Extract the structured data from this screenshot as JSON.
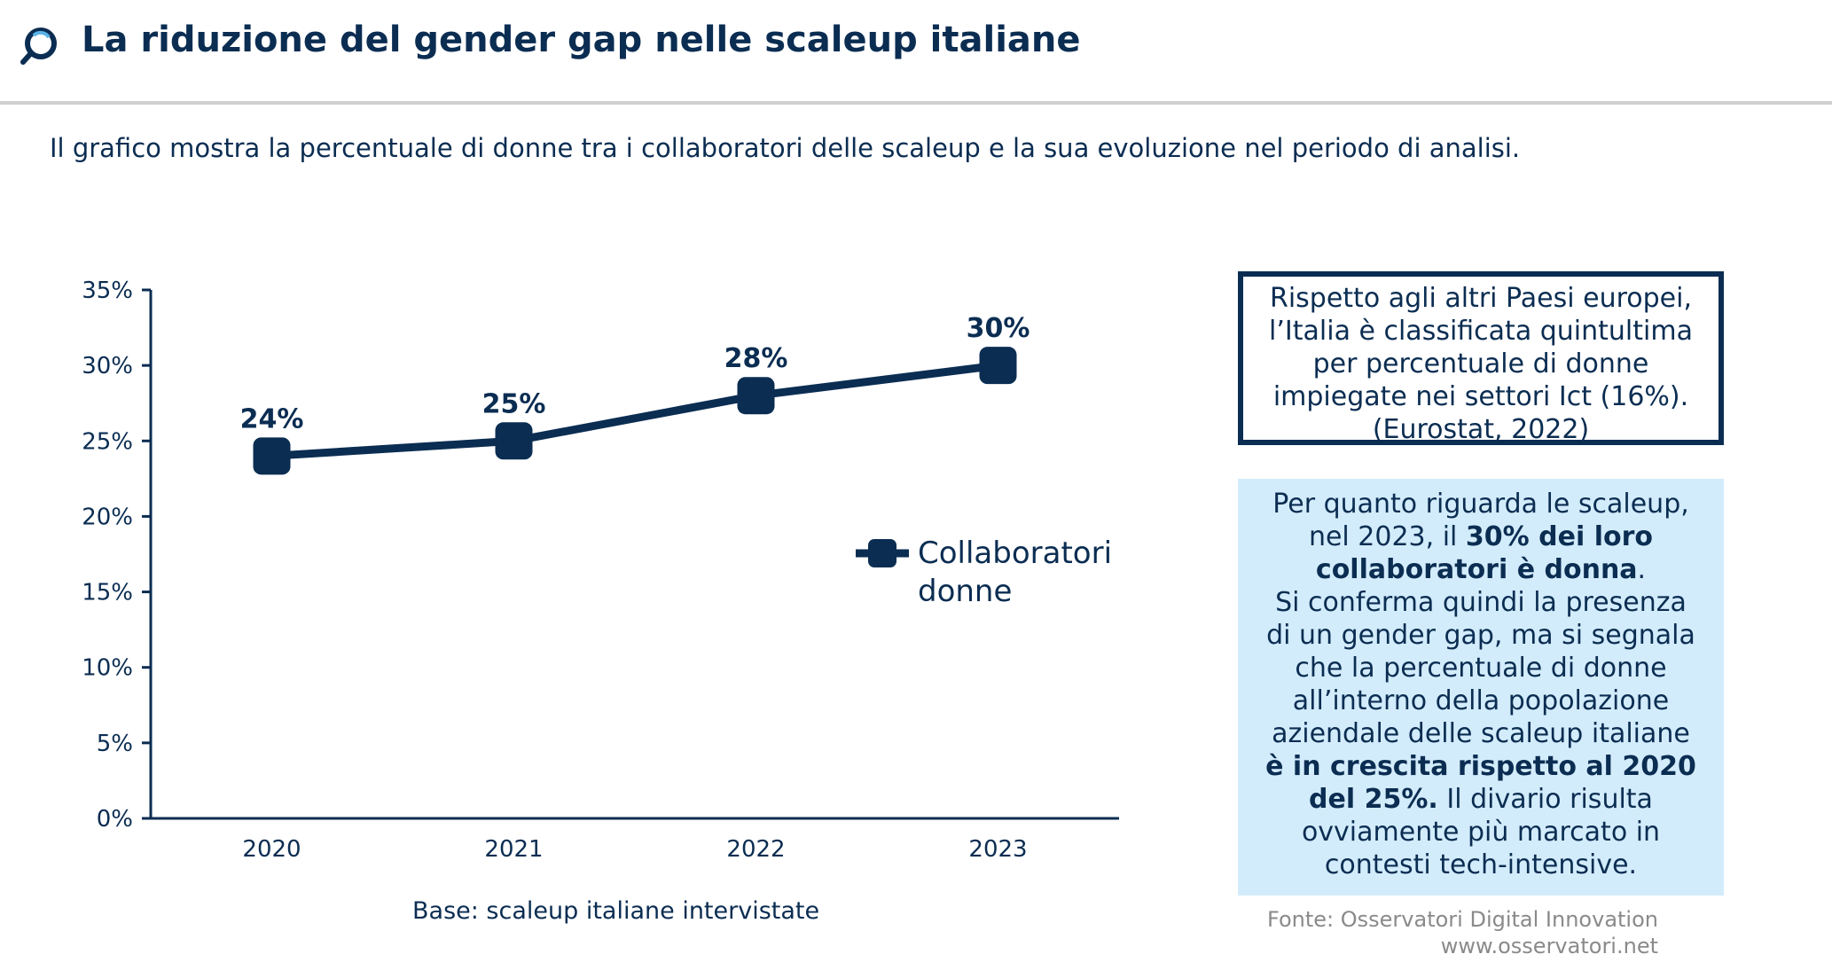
{
  "header": {
    "title": "La riduzione del gender gap nelle scaleup italiane",
    "logo_icon": "magnifier-logo-icon"
  },
  "subtitle": "Il grafico mostra la percentuale di donne tra i collaboratori delle scaleup e la sua evoluzione nel periodo di analisi.",
  "chart_data": {
    "type": "line",
    "categories": [
      "2020",
      "2021",
      "2022",
      "2023"
    ],
    "series": [
      {
        "name": "Collaboratori donne",
        "values": [
          24,
          25,
          28,
          30
        ],
        "labels": [
          "24%",
          "25%",
          "28%",
          "30%"
        ],
        "color": "#0b2d52"
      }
    ],
    "y_ticks": [
      "0%",
      "5%",
      "10%",
      "15%",
      "20%",
      "25%",
      "30%",
      "35%"
    ],
    "ylim": [
      0,
      35
    ],
    "legend_position": "right",
    "grid": false
  },
  "base_note": "Base: scaleup italiane intervistate",
  "box1": {
    "lines": [
      "Rispetto agli altri Paesi europei,",
      "l’Italia è classificata quintultima",
      "per percentuale di donne",
      "impiegate nei settori Ict (16%).",
      "(Eurostat, 2022)"
    ]
  },
  "box2": {
    "p1_a": "Per quanto riguarda le scaleup,",
    "p1_b": "nel 2023, il ",
    "p1_bold_a": "30% dei loro",
    "p1_bold_b": "collaboratori è donna",
    "p1_end": ".",
    "p2_a": "Si conferma quindi la presenza",
    "p2_b": "di un gender gap, ma si segnala",
    "p2_c": "che la percentuale di donne",
    "p2_d": "all’interno della popolazione",
    "p2_e": "aziendale delle scaleup italiane",
    "p2_bold_a": "è in crescita rispetto al 2020",
    "p2_bold_b": "del 25%.",
    "p2_f": " Il divario risulta",
    "p2_g": "ovviamente più marcato in",
    "p2_h": "contesti tech-intensive."
  },
  "source": {
    "line1": "Fonte: Osservatori Digital Innovation",
    "line2": "www.osservatori.net"
  }
}
